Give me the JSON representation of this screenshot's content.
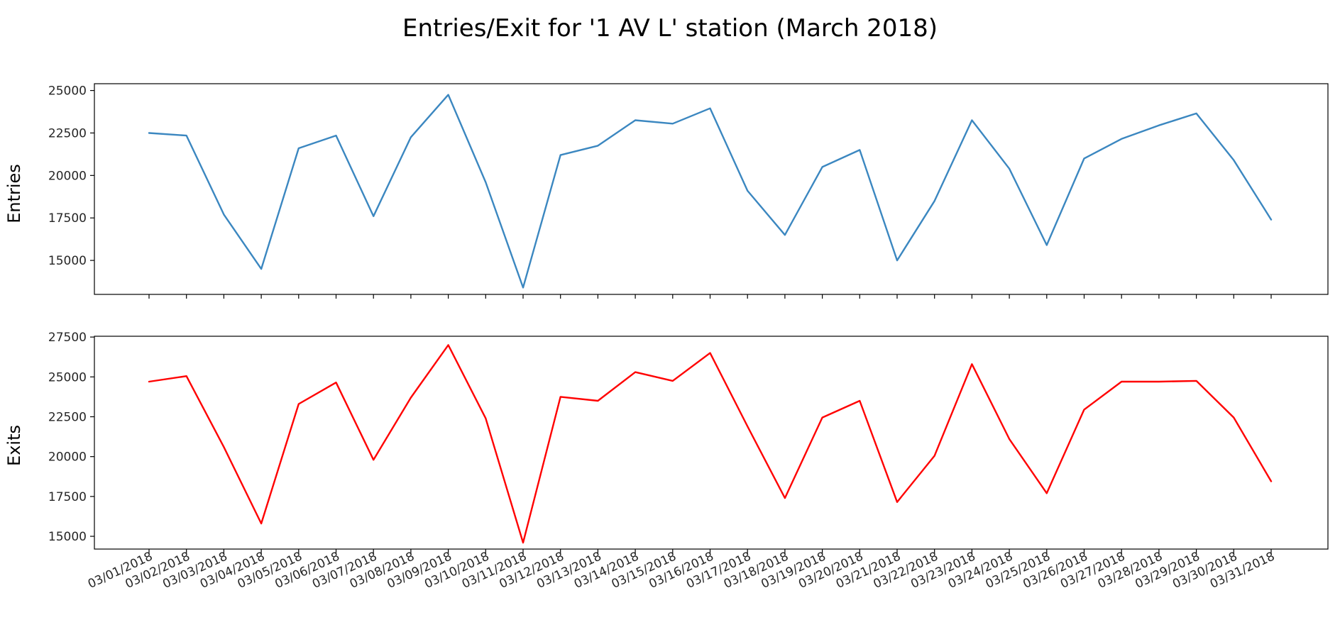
{
  "figure": {
    "title": "Entries/Exit for '1 AV L' station (March 2018)"
  },
  "chart_data": [
    {
      "type": "line",
      "ylabel": "Entries",
      "ylim": [
        13000,
        25400
      ],
      "yticks": [
        15000,
        17500,
        20000,
        22500,
        25000
      ],
      "grid": false,
      "color": "#3b87c0",
      "categories": [
        "03/01/2018",
        "03/02/2018",
        "03/03/2018",
        "03/04/2018",
        "03/05/2018",
        "03/06/2018",
        "03/07/2018",
        "03/08/2018",
        "03/09/2018",
        "03/10/2018",
        "03/11/2018",
        "03/12/2018",
        "03/13/2018",
        "03/14/2018",
        "03/15/2018",
        "03/16/2018",
        "03/17/2018",
        "03/18/2018",
        "03/19/2018",
        "03/20/2018",
        "03/21/2018",
        "03/22/2018",
        "03/23/2018",
        "03/24/2018",
        "03/25/2018",
        "03/26/2018",
        "03/27/2018",
        "03/28/2018",
        "03/29/2018",
        "03/30/2018",
        "03/31/2018"
      ],
      "values": [
        22500,
        22350,
        17700,
        14500,
        21600,
        22350,
        17600,
        22250,
        24750,
        19600,
        13400,
        21200,
        21750,
        23250,
        23050,
        23950,
        19100,
        16500,
        20500,
        21500,
        15000,
        18500,
        23250,
        20400,
        15900,
        21000,
        22150,
        22950,
        23650,
        20900,
        17400
      ]
    },
    {
      "type": "line",
      "ylabel": "Exits",
      "ylim": [
        14200,
        27550
      ],
      "yticks": [
        15000,
        17500,
        20000,
        22500,
        25000,
        27500
      ],
      "grid": false,
      "color": "#ff0000",
      "categories": [
        "03/01/2018",
        "03/02/2018",
        "03/03/2018",
        "03/04/2018",
        "03/05/2018",
        "03/06/2018",
        "03/07/2018",
        "03/08/2018",
        "03/09/2018",
        "03/10/2018",
        "03/11/2018",
        "03/12/2018",
        "03/13/2018",
        "03/14/2018",
        "03/15/2018",
        "03/16/2018",
        "03/17/2018",
        "03/18/2018",
        "03/19/2018",
        "03/20/2018",
        "03/21/2018",
        "03/22/2018",
        "03/23/2018",
        "03/24/2018",
        "03/25/2018",
        "03/26/2018",
        "03/27/2018",
        "03/28/2018",
        "03/29/2018",
        "03/30/2018",
        "03/31/2018"
      ],
      "values": [
        24700,
        25050,
        20600,
        15800,
        23300,
        24650,
        19800,
        23700,
        27000,
        22400,
        14600,
        23750,
        23500,
        25300,
        24750,
        26500,
        21900,
        17400,
        22450,
        23500,
        17150,
        20050,
        25800,
        21100,
        17700,
        22950,
        24700,
        24700,
        24750,
        22450,
        18450
      ]
    }
  ]
}
